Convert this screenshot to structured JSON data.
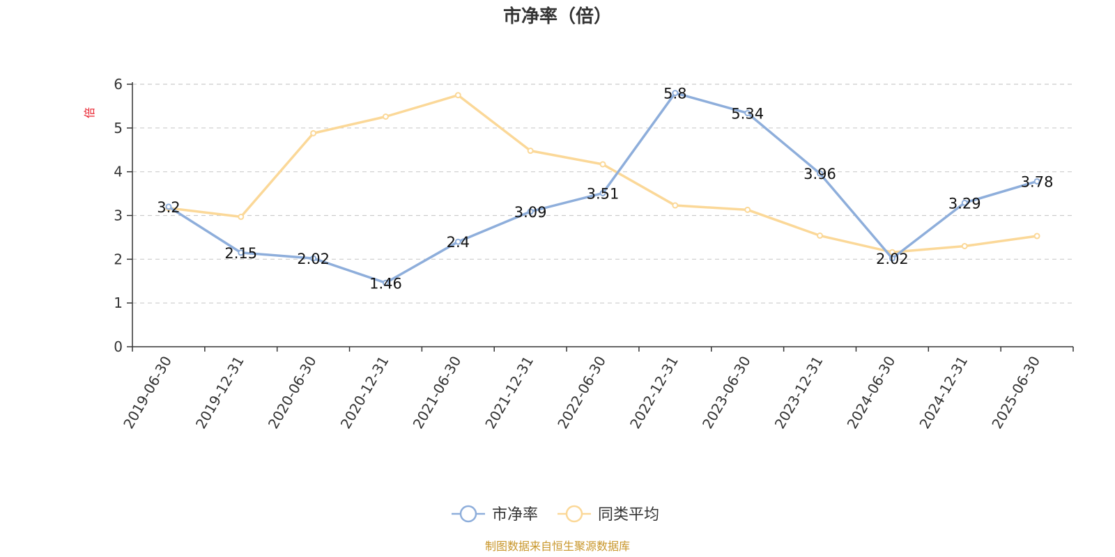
{
  "chart_data": {
    "type": "line",
    "title": "市净率（倍）",
    "ylabel": "倍",
    "source": "制图数据来自恒生聚源数据库",
    "categories": [
      "2019-06-30",
      "2019-12-31",
      "2020-06-30",
      "2020-12-31",
      "2021-06-30",
      "2021-12-31",
      "2022-06-30",
      "2022-12-31",
      "2023-06-30",
      "2023-12-31",
      "2024-06-30",
      "2024-12-31",
      "2025-06-30"
    ],
    "yticks": [
      0,
      1,
      2,
      3,
      4,
      5,
      6
    ],
    "ylim": [
      0,
      6
    ],
    "grid": true,
    "legend_position": "bottom-center",
    "series": [
      {
        "name": "市净率",
        "color": "#8eaedb",
        "values": [
          3.2,
          2.15,
          2.02,
          1.46,
          2.4,
          3.09,
          3.51,
          5.8,
          5.34,
          3.96,
          2.02,
          3.29,
          3.78
        ],
        "labels": [
          "3.2",
          "2.15",
          "2.02",
          "1.46",
          "2.4",
          "3.09",
          "3.51",
          "5.8",
          "5.34",
          "3.96",
          "2.02",
          "3.29",
          "3.78"
        ]
      },
      {
        "name": "同类平均",
        "color": "#fbd898",
        "values": [
          3.17,
          2.97,
          4.88,
          5.26,
          5.75,
          4.48,
          4.17,
          3.23,
          3.13,
          2.54,
          2.16,
          2.3,
          2.53
        ]
      }
    ],
    "colors": {
      "ylabel": "#e8212e",
      "source": "#c8962a",
      "axis": "#333333",
      "grid": "#cccccc"
    }
  }
}
